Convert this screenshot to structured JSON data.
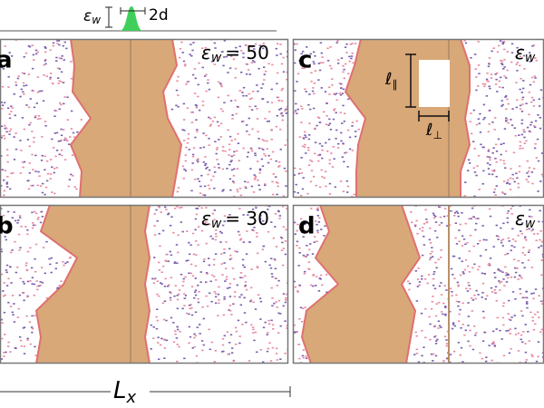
{
  "top": {
    "eps": "ε",
    "eps_sub": "w",
    "width": "2d"
  },
  "panels": [
    {
      "label": "a",
      "eps": "ε",
      "eps_sub": "w",
      "value": "= 50"
    },
    {
      "label": "b",
      "eps": "ε",
      "eps_sub": "w",
      "value": "= 30"
    },
    {
      "label": "c",
      "eps": "ε",
      "eps_sub": "w"
    },
    {
      "label": "d",
      "eps": "ε",
      "eps_sub": "w"
    }
  ],
  "annotations": {
    "l_par": "ℓ",
    "l_par_sub": "∥",
    "l_perp": "ℓ",
    "l_perp_sub": "⊥"
  },
  "axis": {
    "symbol": "L",
    "sub": "x"
  }
}
